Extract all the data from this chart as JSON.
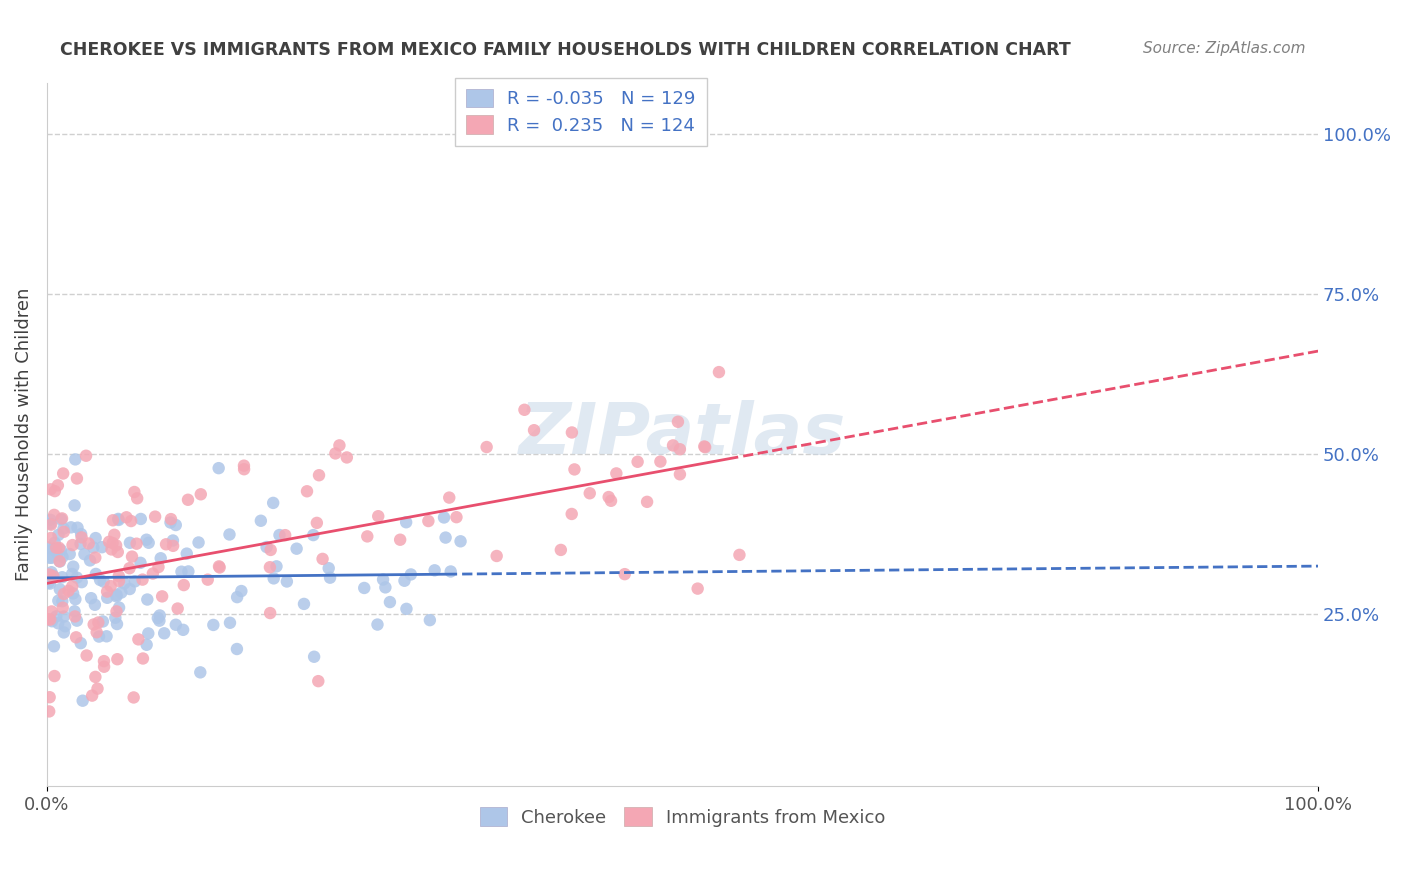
{
  "title": "CHEROKEE VS IMMIGRANTS FROM MEXICO FAMILY HOUSEHOLDS WITH CHILDREN CORRELATION CHART",
  "source": "Source: ZipAtlas.com",
  "ylabel": "Family Households with Children",
  "watermark": "ZIPatlas",
  "legend_blue_R": "-0.035",
  "legend_blue_N": "129",
  "legend_pink_R": "0.235",
  "legend_pink_N": "124",
  "blue_color": "#aec6e8",
  "pink_color": "#f4a7b4",
  "blue_line_color": "#4472c4",
  "pink_line_color": "#e84f6e",
  "legend_text_color": "#4472c4",
  "title_color": "#404040",
  "source_color": "#808080",
  "ylabel_color": "#404040",
  "right_tick_color": "#4472c4",
  "xlim": [
    0.0,
    1.0
  ],
  "ylim": [
    -0.02,
    1.08
  ],
  "y_ticks_right": [
    0.25,
    0.5,
    0.75,
    1.0
  ],
  "y_tick_labels_right": [
    "25.0%",
    "50.0%",
    "75.0%",
    "100.0%"
  ],
  "grid_color": "#d0d0d0",
  "background_color": "#ffffff",
  "legend_label_blue": "Cherokee",
  "legend_label_pink": "Immigrants from Mexico"
}
